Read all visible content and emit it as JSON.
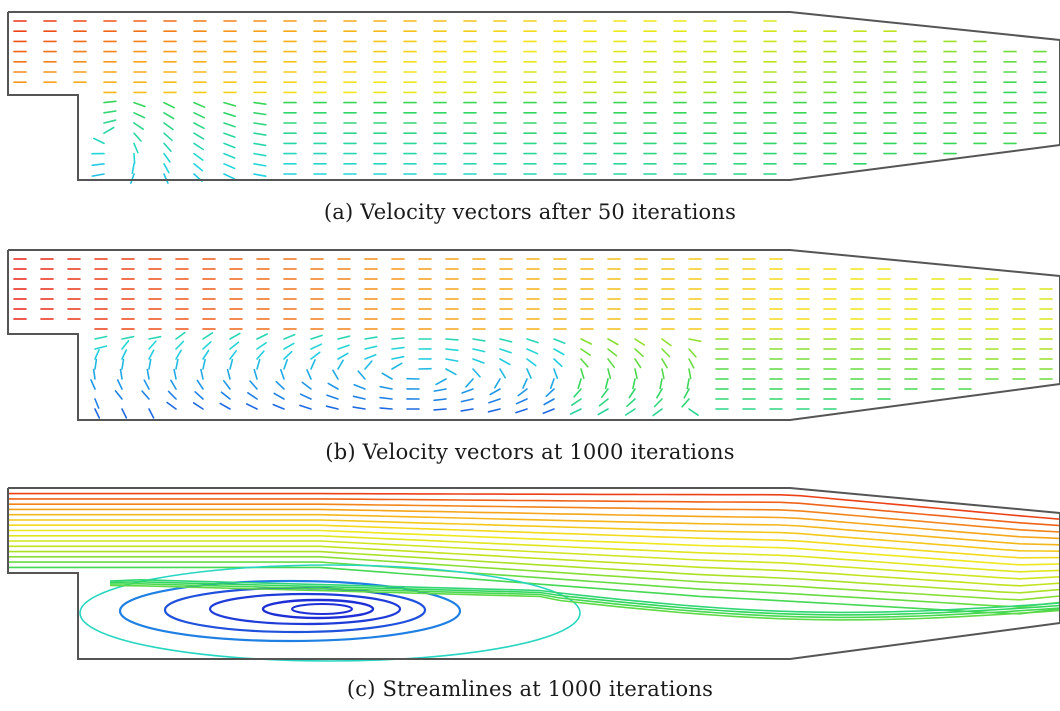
{
  "figure": {
    "panels": [
      {
        "caption": "(a) Velocity vectors after 50 iterations"
      },
      {
        "caption": "(b) Velocity vectors at 1000 iterations"
      },
      {
        "caption": "(c) Streamlines at 1000 iterations"
      }
    ]
  },
  "colors": {
    "wall": "#555555",
    "colormap": [
      "#1f2fd6",
      "#1f8fe6",
      "#22d6e0",
      "#33d65a",
      "#b6e21e",
      "#f2e81c",
      "#f6a11a",
      "#e81e16"
    ]
  }
}
